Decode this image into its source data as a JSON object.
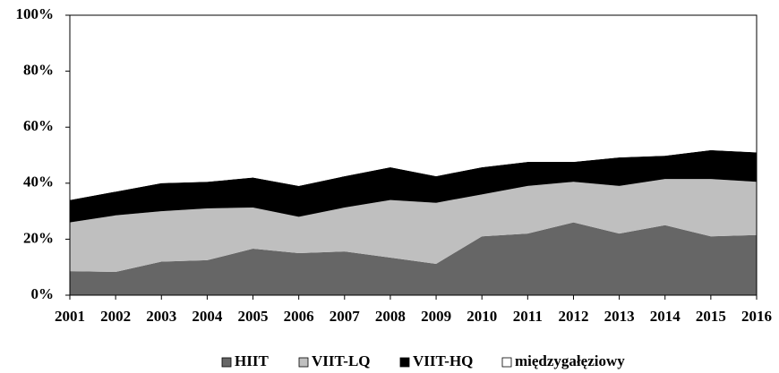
{
  "chart_data": {
    "type": "stacked_area",
    "categories": [
      "2001",
      "2002",
      "2003",
      "2004",
      "2005",
      "2006",
      "2007",
      "2008",
      "2009",
      "2010",
      "2011",
      "2012",
      "2013",
      "2014",
      "2015",
      "2016"
    ],
    "series": [
      {
        "name": "HIIT",
        "color": "#666666",
        "values": [
          8.6,
          8.3,
          12,
          12.5,
          16.6,
          15,
          15.6,
          13.4,
          11.2,
          21,
          22,
          26,
          22,
          25,
          21,
          21.5
        ]
      },
      {
        "name": "VIIT-LQ",
        "color": "#bfbfbf",
        "values": [
          17.4,
          20.2,
          18,
          18.5,
          14.7,
          13,
          15.7,
          20.6,
          21.8,
          15,
          17,
          14.5,
          17,
          16.5,
          20.5,
          19
        ]
      },
      {
        "name": "VIIT-HQ",
        "color": "#000000",
        "values": [
          8,
          8.5,
          10,
          9.5,
          10.7,
          11,
          11.2,
          11.7,
          9.5,
          9.7,
          8.6,
          7.1,
          10.2,
          8.3,
          10.3,
          10.5
        ]
      },
      {
        "name": "międzygałęziowy",
        "color": "#ffffff",
        "values": [
          66,
          63,
          60,
          59.5,
          58,
          61,
          57.5,
          54.3,
          57.5,
          54.3,
          52.4,
          52.4,
          50.8,
          50.2,
          48.2,
          49
        ]
      }
    ],
    "ylim": [
      0,
      100
    ],
    "yticks": [
      {
        "value": 0,
        "label": "0%"
      },
      {
        "value": 20,
        "label": "20%"
      },
      {
        "value": 40,
        "label": "40%"
      },
      {
        "value": 60,
        "label": "60%"
      },
      {
        "value": 80,
        "label": "80%"
      },
      {
        "value": 100,
        "label": "100%"
      }
    ],
    "legend": "bottom"
  }
}
